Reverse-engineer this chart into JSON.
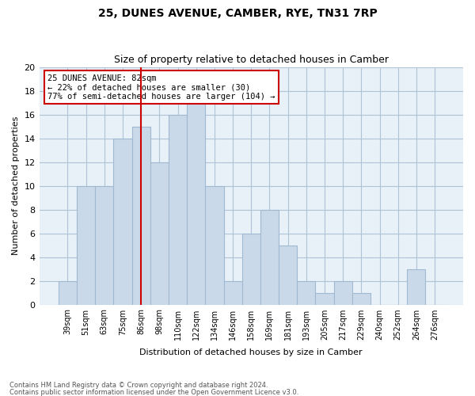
{
  "title1": "25, DUNES AVENUE, CAMBER, RYE, TN31 7RP",
  "title2": "Size of property relative to detached houses in Camber",
  "xlabel": "Distribution of detached houses by size in Camber",
  "ylabel": "Number of detached properties",
  "footnote1": "Contains HM Land Registry data © Crown copyright and database right 2024.",
  "footnote2": "Contains public sector information licensed under the Open Government Licence v3.0.",
  "categories": [
    "39sqm",
    "51sqm",
    "63sqm",
    "75sqm",
    "86sqm",
    "98sqm",
    "110sqm",
    "122sqm",
    "134sqm",
    "146sqm",
    "158sqm",
    "169sqm",
    "181sqm",
    "193sqm",
    "205sqm",
    "217sqm",
    "229sqm",
    "240sqm",
    "252sqm",
    "264sqm",
    "276sqm"
  ],
  "values": [
    2,
    10,
    10,
    14,
    15,
    12,
    16,
    17,
    10,
    2,
    6,
    8,
    5,
    2,
    1,
    2,
    1,
    0,
    0,
    3,
    0
  ],
  "bar_color": "#c9d9ea",
  "bar_edge_color": "#a0b8d0",
  "grid_color": "#b0c4d8",
  "bg_color": "#e8f0f8",
  "annotation_text": "25 DUNES AVENUE: 82sqm\n← 22% of detached houses are smaller (30)\n77% of semi-detached houses are larger (104) →",
  "annotation_box_edge": "#cc0000",
  "ylim": [
    0,
    20
  ],
  "yticks": [
    0,
    2,
    4,
    6,
    8,
    10,
    12,
    14,
    16,
    18,
    20
  ]
}
